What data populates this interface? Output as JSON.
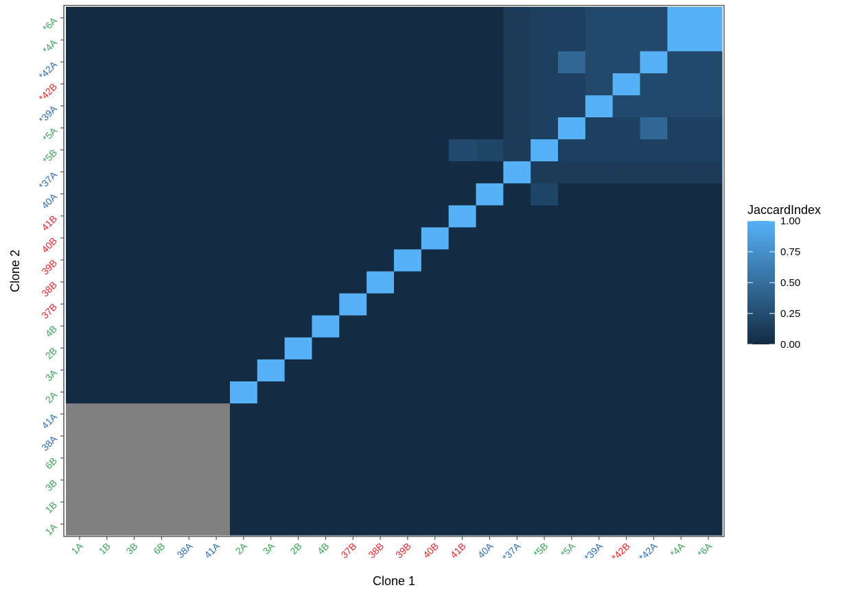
{
  "chart_data": {
    "type": "heatmap",
    "xlabel": "Clone 1",
    "ylabel": "Clone 2",
    "categories": [
      "1A",
      "1B",
      "3B",
      "6B",
      "38A",
      "41A",
      "2A",
      "3A",
      "2B",
      "4B",
      "37B",
      "38B",
      "39B",
      "40B",
      "41B",
      "40A",
      "*37A",
      "*5B",
      "*5A",
      "*39A",
      "*42B",
      "*42A",
      "*4A",
      "*6A"
    ],
    "label_colors": [
      "#3aa655",
      "#3aa655",
      "#3aa655",
      "#3aa655",
      "#2e6fb5",
      "#2e6fb5",
      "#3aa655",
      "#3aa655",
      "#3aa655",
      "#3aa655",
      "#e8242b",
      "#e8242b",
      "#e8242b",
      "#e8242b",
      "#e8242b",
      "#2e6fb5",
      "#2e6fb5",
      "#3aa655",
      "#3aa655",
      "#2e6fb5",
      "#e8242b",
      "#2e6fb5",
      "#3aa655",
      "#3aa655"
    ],
    "na_block": {
      "x_count": 6,
      "y_count": 6,
      "color": "#808080"
    },
    "high_values": [
      [
        15,
        15,
        1.0
      ],
      [
        16,
        16,
        1.0
      ],
      [
        17,
        17,
        1.0
      ],
      [
        18,
        18,
        1.0
      ],
      [
        19,
        19,
        1.0
      ],
      [
        20,
        20,
        1.0
      ],
      [
        21,
        21,
        1.0
      ],
      [
        22,
        22,
        1.0
      ],
      [
        22,
        23,
        1.0
      ],
      [
        23,
        22,
        1.0
      ],
      [
        23,
        23,
        1.0
      ],
      [
        6,
        6,
        1.0
      ],
      [
        7,
        7,
        1.0
      ],
      [
        8,
        8,
        1.0
      ],
      [
        9,
        9,
        1.0
      ],
      [
        10,
        10,
        1.0
      ],
      [
        11,
        11,
        1.0
      ],
      [
        12,
        12,
        1.0
      ],
      [
        13,
        13,
        1.0
      ],
      [
        14,
        14,
        1.0
      ],
      [
        17,
        15,
        0.2
      ],
      [
        15,
        17,
        0.2
      ],
      [
        18,
        21,
        0.45
      ],
      [
        21,
        18,
        0.45
      ],
      [
        16,
        17,
        0.12
      ],
      [
        16,
        18,
        0.12
      ],
      [
        16,
        19,
        0.12
      ],
      [
        16,
        20,
        0.12
      ],
      [
        16,
        21,
        0.12
      ],
      [
        16,
        22,
        0.12
      ],
      [
        16,
        23,
        0.12
      ],
      [
        17,
        16,
        0.12
      ],
      [
        18,
        16,
        0.12
      ],
      [
        19,
        16,
        0.12
      ],
      [
        20,
        16,
        0.12
      ],
      [
        21,
        16,
        0.12
      ],
      [
        22,
        16,
        0.12
      ],
      [
        23,
        16,
        0.12
      ],
      [
        17,
        18,
        0.16
      ],
      [
        17,
        19,
        0.16
      ],
      [
        17,
        20,
        0.16
      ],
      [
        17,
        21,
        0.16
      ],
      [
        17,
        22,
        0.16
      ],
      [
        17,
        23,
        0.16
      ],
      [
        18,
        17,
        0.16
      ],
      [
        19,
        17,
        0.16
      ],
      [
        20,
        17,
        0.16
      ],
      [
        21,
        17,
        0.16
      ],
      [
        22,
        17,
        0.16
      ],
      [
        23,
        17,
        0.16
      ],
      [
        18,
        19,
        0.16
      ],
      [
        18,
        20,
        0.16
      ],
      [
        18,
        22,
        0.16
      ],
      [
        18,
        23,
        0.16
      ],
      [
        19,
        18,
        0.16
      ],
      [
        20,
        18,
        0.16
      ],
      [
        22,
        18,
        0.16
      ],
      [
        23,
        18,
        0.16
      ],
      [
        19,
        20,
        0.22
      ],
      [
        19,
        21,
        0.22
      ],
      [
        19,
        22,
        0.22
      ],
      [
        19,
        23,
        0.22
      ],
      [
        20,
        19,
        0.22
      ],
      [
        21,
        19,
        0.22
      ],
      [
        22,
        19,
        0.22
      ],
      [
        23,
        19,
        0.22
      ],
      [
        20,
        21,
        0.22
      ],
      [
        20,
        22,
        0.22
      ],
      [
        20,
        23,
        0.22
      ],
      [
        21,
        20,
        0.22
      ],
      [
        22,
        20,
        0.22
      ],
      [
        23,
        20,
        0.22
      ],
      [
        21,
        22,
        0.22
      ],
      [
        21,
        23,
        0.22
      ],
      [
        22,
        21,
        0.22
      ],
      [
        23,
        21,
        0.22
      ],
      [
        14,
        17,
        0.22
      ]
    ],
    "default_value": 0.0,
    "legend": {
      "title": "JaccardIndex",
      "ticks": [
        "1.00",
        "0.75",
        "0.50",
        "0.25",
        "0.00"
      ],
      "tick_values": [
        1.0,
        0.75,
        0.5,
        0.25,
        0.0
      ],
      "low_color": "#132b43",
      "high_color": "#56b1f7",
      "position": "right"
    }
  }
}
